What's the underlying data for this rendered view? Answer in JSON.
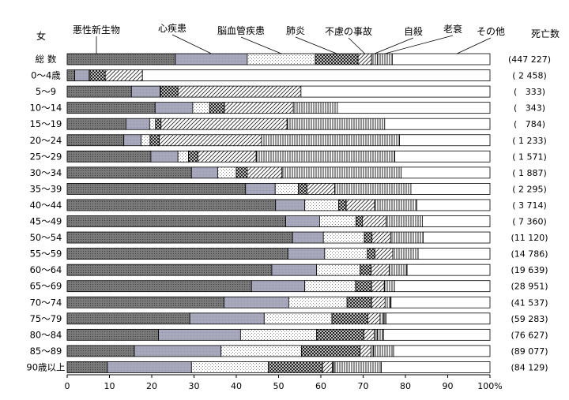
{
  "chart_data": {
    "type": "bar",
    "orientation": "horizontal",
    "stacked": true,
    "percent_scale": true,
    "sex_label": "女",
    "death_count_header": "死亡数",
    "categories": [
      "総 数",
      "0～4歳",
      "5～9",
      "10～14",
      "15～19",
      "20～24",
      "25～29",
      "30～34",
      "35～39",
      "40～44",
      "45～49",
      "50～54",
      "55～59",
      "60～64",
      "65～69",
      "70～74",
      "75～79",
      "80～84",
      "85～89",
      "90歳以上"
    ],
    "death_counts": [
      "(447 227)",
      "( 2 458)",
      "(   333)",
      "(   343)",
      "(   784)",
      "( 1 233)",
      "( 1 571)",
      "( 1 887)",
      "( 2 295)",
      "( 3 714)",
      "( 7 360)",
      "(11 120)",
      "(14 786)",
      "(19 639)",
      "(28 951)",
      "(41 537)",
      "(59 283)",
      "(76 627)",
      "(89 077)",
      "(84 129)"
    ],
    "series": [
      {
        "name": "悪性新生物",
        "pattern": "dense-dots",
        "values": [
          25.6,
          1.8,
          15.2,
          20.8,
          13.9,
          13.4,
          19.8,
          29.4,
          42.2,
          49.3,
          51.7,
          53.3,
          52.2,
          48.4,
          43.6,
          37.1,
          29.0,
          21.6,
          15.9,
          9.5
        ]
      },
      {
        "name": "心疾患",
        "pattern": "gray",
        "values": [
          17.0,
          3.4,
          6.8,
          8.9,
          5.6,
          4.1,
          6.4,
          6.2,
          7.0,
          6.9,
          8.0,
          7.3,
          8.7,
          10.6,
          12.6,
          15.3,
          17.6,
          19.4,
          20.5,
          19.9
        ]
      },
      {
        "name": "脳血管疾患",
        "pattern": "light-dots",
        "values": [
          16.1,
          0.2,
          0.1,
          4.0,
          1.4,
          2.1,
          2.5,
          4.4,
          5.5,
          8.0,
          8.6,
          9.7,
          10.1,
          10.3,
          12.0,
          13.8,
          16.0,
          18.0,
          19.0,
          18.2
        ]
      },
      {
        "name": "肺炎",
        "pattern": "crosshatch",
        "values": [
          10.1,
          3.6,
          4.1,
          3.5,
          1.3,
          2.2,
          2.2,
          2.6,
          2.0,
          1.8,
          1.5,
          1.8,
          1.8,
          2.6,
          3.8,
          5.8,
          8.5,
          11.2,
          13.9,
          12.8
        ]
      },
      {
        "name": "不慮の事故",
        "pattern": "diagonal",
        "values": [
          3.2,
          8.8,
          29.1,
          16.3,
          29.8,
          24.2,
          13.8,
          8.2,
          6.6,
          6.7,
          5.6,
          4.4,
          4.2,
          4.3,
          3.0,
          3.2,
          2.9,
          2.4,
          2.6,
          2.3
        ]
      },
      {
        "name": "自殺",
        "pattern": "vertical-lines",
        "values": [
          1.4,
          0,
          0,
          10.4,
          23.1,
          32.6,
          32.8,
          28.2,
          18.0,
          10.0,
          8.6,
          7.7,
          6.0,
          4.2,
          2.4,
          1.3,
          0.9,
          0.7,
          0.6,
          0.4
        ]
      },
      {
        "name": "老衰",
        "pattern": "vertical-lines",
        "values": [
          3.5,
          0,
          0,
          0,
          0,
          0,
          0,
          0,
          0,
          0,
          0,
          0,
          0,
          0,
          0,
          0.1,
          0.5,
          1.5,
          4.7,
          11.2
        ]
      },
      {
        "name": "その他",
        "pattern": "white",
        "values": [
          23.1,
          82.2,
          44.7,
          36.1,
          24.9,
          21.4,
          22.5,
          21.0,
          18.7,
          17.3,
          16.0,
          15.8,
          17.0,
          19.6,
          22.6,
          23.4,
          24.6,
          25.2,
          22.8,
          25.7
        ]
      }
    ],
    "x_ticks": [
      "0",
      "10",
      "20",
      "30",
      "40",
      "50",
      "60",
      "70",
      "80",
      "90",
      "100%"
    ],
    "xlim": [
      0,
      100
    ],
    "grid": false,
    "legend": "labels with leader lines above the total bar"
  }
}
